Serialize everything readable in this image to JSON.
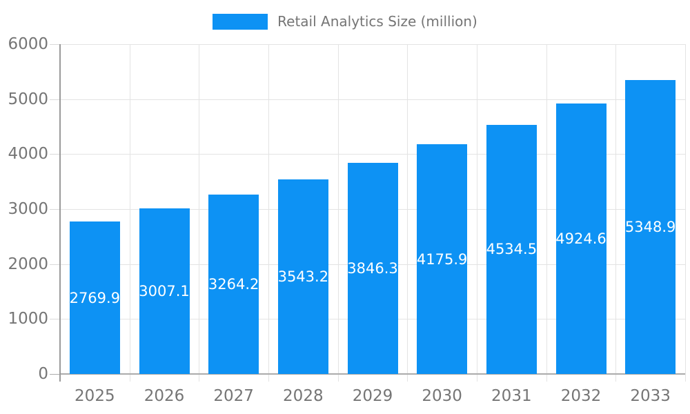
{
  "legend": {
    "label": "Retail Analytics Size (million)"
  },
  "colors": {
    "bar": "#0D92F4",
    "grid": "#e3e3e3",
    "tick": "#d9d9d9",
    "axis": "#999999",
    "baseline": "#ababab",
    "text": "#757575",
    "value_label": "#ffffff",
    "background": "#ffffff"
  },
  "chart_data": {
    "type": "bar",
    "title": "Retail Analytics Size (million)",
    "categories": [
      "2025",
      "2026",
      "2027",
      "2028",
      "2029",
      "2030",
      "2031",
      "2032",
      "2033"
    ],
    "values": [
      2769.9,
      3007.1,
      3264.2,
      3543.2,
      3846.3,
      4175.9,
      4534.5,
      4924.6,
      5348.9
    ],
    "series_name": "Retail Analytics Size (million)",
    "xlabel": "",
    "ylabel": "",
    "ylim": [
      0,
      6000
    ],
    "ytick_step": 1000,
    "ytick_labels": [
      "0",
      "1000",
      "2000",
      "3000",
      "4000",
      "5000",
      "6000"
    ],
    "grid": true,
    "legend_position": "top-center",
    "value_label_position": "inside-center"
  }
}
